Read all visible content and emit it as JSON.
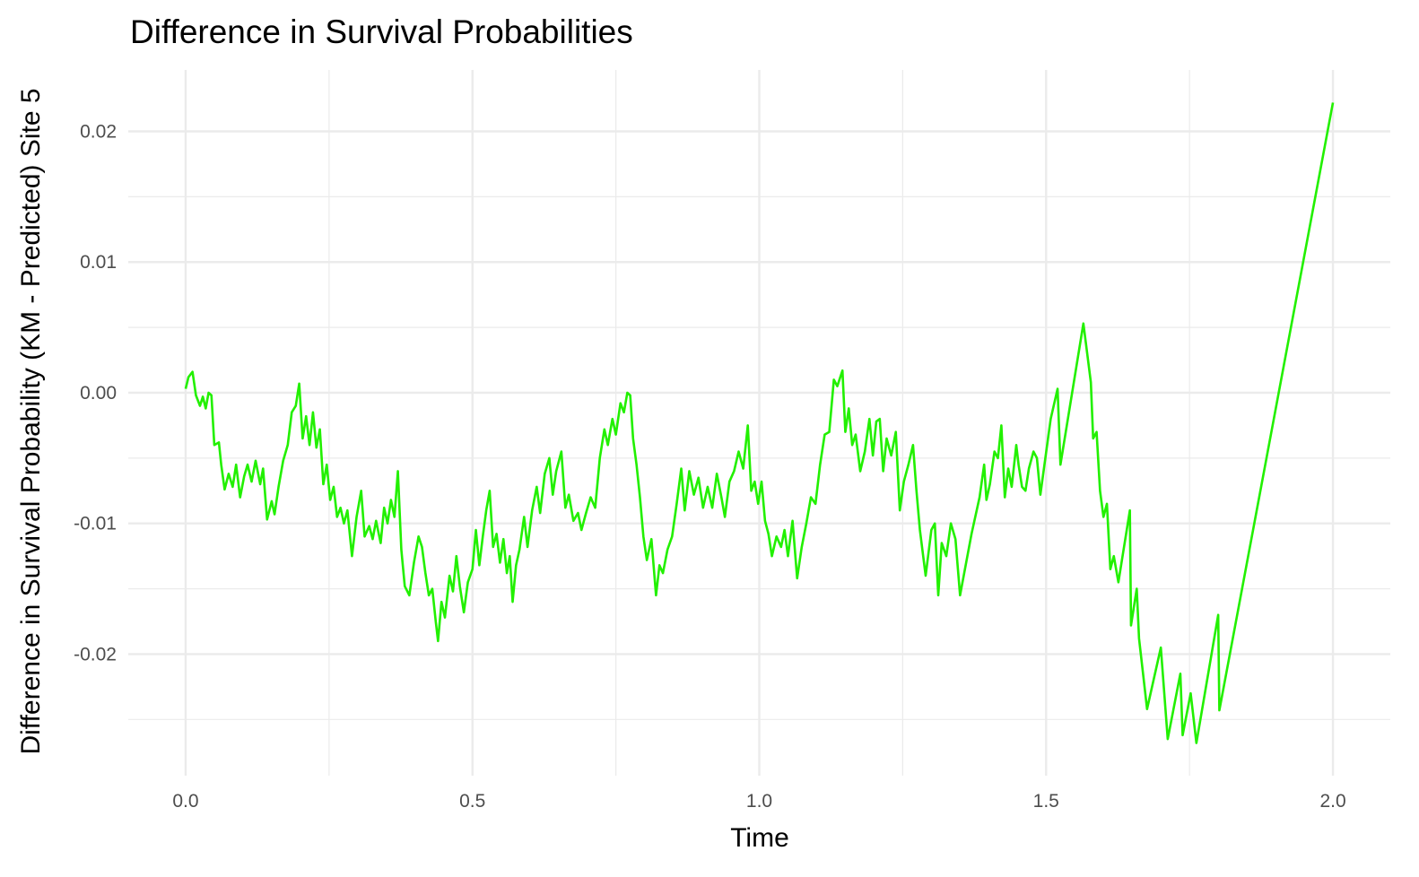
{
  "chart_data": {
    "type": "line",
    "title": "Difference in Survival Probabilities",
    "x_label": "Time",
    "y_label": "Difference in Survival Probability (KM - Predicted) Site 5",
    "xlim": [
      -0.1,
      2.1
    ],
    "ylim": [
      -0.0293,
      0.0247
    ],
    "xticks": [
      {
        "value": 0,
        "label": "0.0"
      },
      0.5,
      {
        "value": 1,
        "label": "1.0"
      },
      1.5,
      {
        "value": 2,
        "label": "2.0"
      }
    ],
    "yticks": [
      -0.02,
      -0.01,
      {
        "value": 0,
        "label": "0.00"
      },
      0.01,
      0.02
    ],
    "xminor": [
      0.25,
      0.75,
      1.25,
      1.75
    ],
    "yminor": [
      -0.025,
      -0.015,
      -0.005,
      0.005,
      0.015
    ],
    "grid": true,
    "color": "#22f000",
    "x": [
      0.0,
      0.005,
      0.012,
      0.018,
      0.025,
      0.03,
      0.035,
      0.04,
      0.045,
      0.05,
      0.058,
      0.062,
      0.068,
      0.075,
      0.082,
      0.088,
      0.095,
      0.102,
      0.108,
      0.115,
      0.122,
      0.13,
      0.135,
      0.142,
      0.15,
      0.155,
      0.162,
      0.17,
      0.178,
      0.185,
      0.192,
      0.198,
      0.204,
      0.21,
      0.216,
      0.222,
      0.228,
      0.234,
      0.24,
      0.246,
      0.252,
      0.258,
      0.264,
      0.27,
      0.276,
      0.282,
      0.29,
      0.298,
      0.306,
      0.312,
      0.32,
      0.326,
      0.332,
      0.34,
      0.346,
      0.352,
      0.358,
      0.364,
      0.37,
      0.376,
      0.382,
      0.39,
      0.398,
      0.406,
      0.412,
      0.418,
      0.424,
      0.43,
      0.436,
      0.44,
      0.446,
      0.452,
      0.46,
      0.466,
      0.472,
      0.478,
      0.485,
      0.492,
      0.5,
      0.506,
      0.512,
      0.518,
      0.524,
      0.53,
      0.536,
      0.542,
      0.548,
      0.554,
      0.56,
      0.565,
      0.57,
      0.576,
      0.582,
      0.59,
      0.596,
      0.604,
      0.612,
      0.618,
      0.626,
      0.634,
      0.64,
      0.646,
      0.655,
      0.662,
      0.668,
      0.676,
      0.684,
      0.69,
      0.698,
      0.706,
      0.714,
      0.722,
      0.73,
      0.736,
      0.744,
      0.75,
      0.758,
      0.764,
      0.77,
      0.775,
      0.78,
      0.786,
      0.792,
      0.798,
      0.804,
      0.812,
      0.82,
      0.826,
      0.832,
      0.84,
      0.848,
      0.856,
      0.864,
      0.87,
      0.878,
      0.886,
      0.894,
      0.902,
      0.91,
      0.918,
      0.926,
      0.934,
      0.94,
      0.948,
      0.956,
      0.964,
      0.972,
      0.98,
      0.986,
      0.992,
      0.998,
      1.004,
      1.01,
      1.016,
      1.022,
      1.03,
      1.038,
      1.044,
      1.05,
      1.058,
      1.066,
      1.074,
      1.082,
      1.09,
      1.098,
      1.106,
      1.114,
      1.122,
      1.13,
      1.136,
      1.145,
      1.15,
      1.156,
      1.162,
      1.168,
      1.176,
      1.184,
      1.192,
      1.198,
      1.204,
      1.21,
      1.216,
      1.222,
      1.23,
      1.238,
      1.245,
      1.252,
      1.26,
      1.268,
      1.274,
      1.28,
      1.29,
      1.3,
      1.306,
      1.312,
      1.318,
      1.326,
      1.334,
      1.342,
      1.35,
      1.37,
      1.384,
      1.392,
      1.396,
      1.402,
      1.41,
      1.416,
      1.422,
      1.428,
      1.434,
      1.44,
      1.448,
      1.452,
      1.458,
      1.464,
      1.47,
      1.478,
      1.484,
      1.49,
      1.508,
      1.52,
      1.525,
      1.565,
      1.578,
      1.582,
      1.588,
      1.594,
      1.6,
      1.606,
      1.612,
      1.618,
      1.626,
      1.646,
      1.648,
      1.658,
      1.662,
      1.676,
      1.7,
      1.712,
      1.734,
      1.738,
      1.752,
      1.762,
      1.8,
      1.802,
      2.0
    ],
    "values": [
      0.0003,
      0.0012,
      0.0016,
      -0.0002,
      -0.001,
      -0.0003,
      -0.0012,
      0.0,
      -0.0002,
      -0.004,
      -0.0038,
      -0.0055,
      -0.0074,
      -0.0062,
      -0.0072,
      -0.0055,
      -0.008,
      -0.0064,
      -0.0055,
      -0.0068,
      -0.0052,
      -0.007,
      -0.0058,
      -0.0097,
      -0.0083,
      -0.0093,
      -0.0072,
      -0.0052,
      -0.004,
      -0.0015,
      -0.001,
      0.0007,
      -0.0035,
      -0.0018,
      -0.004,
      -0.0015,
      -0.0042,
      -0.0028,
      -0.007,
      -0.0055,
      -0.0082,
      -0.0072,
      -0.0095,
      -0.0088,
      -0.01,
      -0.009,
      -0.0125,
      -0.0095,
      -0.0075,
      -0.011,
      -0.0102,
      -0.0112,
      -0.0098,
      -0.0115,
      -0.0088,
      -0.01,
      -0.0082,
      -0.0095,
      -0.006,
      -0.012,
      -0.0148,
      -0.0155,
      -0.013,
      -0.011,
      -0.0118,
      -0.0138,
      -0.0155,
      -0.015,
      -0.0175,
      -0.019,
      -0.016,
      -0.0172,
      -0.014,
      -0.0152,
      -0.0125,
      -0.0148,
      -0.0168,
      -0.0145,
      -0.0135,
      -0.0105,
      -0.0132,
      -0.011,
      -0.009,
      -0.0075,
      -0.0118,
      -0.0108,
      -0.013,
      -0.0112,
      -0.0138,
      -0.0125,
      -0.016,
      -0.0132,
      -0.012,
      -0.0095,
      -0.0118,
      -0.009,
      -0.0072,
      -0.0092,
      -0.0062,
      -0.005,
      -0.0078,
      -0.006,
      -0.0045,
      -0.0088,
      -0.0078,
      -0.0098,
      -0.0092,
      -0.0105,
      -0.0092,
      -0.008,
      -0.0088,
      -0.005,
      -0.0028,
      -0.004,
      -0.002,
      -0.0032,
      -0.0008,
      -0.0015,
      0.0,
      -0.0002,
      -0.0035,
      -0.0055,
      -0.008,
      -0.011,
      -0.0128,
      -0.0112,
      -0.0155,
      -0.0132,
      -0.0138,
      -0.012,
      -0.011,
      -0.0085,
      -0.0058,
      -0.009,
      -0.006,
      -0.0078,
      -0.0065,
      -0.0088,
      -0.0072,
      -0.0088,
      -0.0062,
      -0.008,
      -0.0095,
      -0.0068,
      -0.006,
      -0.0045,
      -0.0058,
      -0.0025,
      -0.0075,
      -0.0068,
      -0.0085,
      -0.0068,
      -0.0098,
      -0.0108,
      -0.0125,
      -0.011,
      -0.0118,
      -0.0105,
      -0.0125,
      -0.0098,
      -0.0142,
      -0.0118,
      -0.01,
      -0.008,
      -0.0085,
      -0.0055,
      -0.0032,
      -0.003,
      0.001,
      0.0005,
      0.0017,
      -0.003,
      -0.0012,
      -0.004,
      -0.0032,
      -0.006,
      -0.0045,
      -0.002,
      -0.0048,
      -0.0022,
      -0.002,
      -0.006,
      -0.0035,
      -0.0048,
      -0.003,
      -0.009,
      -0.0068,
      -0.0055,
      -0.004,
      -0.0075,
      -0.0105,
      -0.014,
      -0.0105,
      -0.01,
      -0.0155,
      -0.0115,
      -0.0125,
      -0.01,
      -0.0112,
      -0.0155,
      -0.0108,
      -0.008,
      -0.0055,
      -0.0082,
      -0.007,
      -0.0045,
      -0.005,
      -0.0025,
      -0.008,
      -0.0058,
      -0.0072,
      -0.004,
      -0.0055,
      -0.0072,
      -0.0075,
      -0.0058,
      -0.0045,
      -0.005,
      -0.0078,
      -0.002,
      0.0003,
      -0.0055,
      0.0053,
      0.0008,
      -0.0035,
      -0.003,
      -0.0075,
      -0.0095,
      -0.0085,
      -0.0135,
      -0.0125,
      -0.0145,
      -0.009,
      -0.0178,
      -0.015,
      -0.0188,
      -0.0242,
      -0.0195,
      -0.0265,
      -0.0215,
      -0.0262,
      -0.023,
      -0.0268,
      -0.017,
      -0.0243,
      0.0222
    ]
  }
}
